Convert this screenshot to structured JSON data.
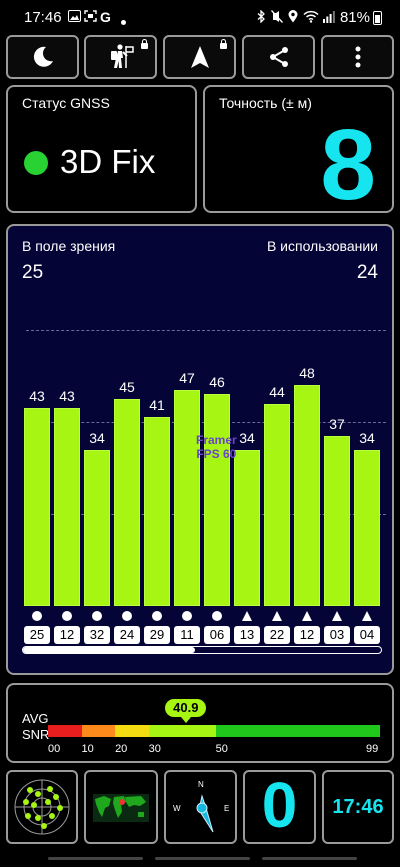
{
  "status_bar": {
    "time": "17:46",
    "left_icons": [
      "image-icon",
      "screenshot-icon",
      "google-icon",
      "dot-icon"
    ],
    "right_icons": [
      "bluetooth-icon",
      "mute-icon",
      "location-icon",
      "wifi-icon",
      "signal-icon"
    ],
    "battery": "81%"
  },
  "toolbar": {
    "buttons": [
      {
        "icon": "moon-icon"
      },
      {
        "icon": "hiker-icon",
        "locked": true
      },
      {
        "icon": "navigation-arrow-icon",
        "locked": true
      },
      {
        "icon": "share-icon"
      },
      {
        "icon": "more-vert-icon"
      }
    ]
  },
  "gnss": {
    "label": "Статус GNSS",
    "value": "3D Fix",
    "dot_color": "#27d232"
  },
  "accuracy": {
    "label": "Точность (± м)",
    "value": "8",
    "color": "#16e5f0"
  },
  "sky": {
    "in_view_label": "В поле зрения",
    "in_view": "25",
    "in_use_label": "В использовании",
    "in_use": "24",
    "watermark_line1": "Framer",
    "watermark_line2": "FPS 60",
    "scroll_fraction": 0.48
  },
  "chart_data": {
    "type": "bar",
    "categories": [
      "25",
      "12",
      "32",
      "24",
      "29",
      "11",
      "06",
      "13",
      "22",
      "12",
      "03",
      "04"
    ],
    "values": [
      43,
      43,
      34,
      45,
      41,
      47,
      46,
      34,
      44,
      48,
      37,
      34
    ],
    "markers": [
      "circle",
      "circle",
      "circle",
      "circle",
      "circle",
      "circle",
      "circle",
      "triangle",
      "triangle",
      "triangle",
      "triangle",
      "triangle"
    ],
    "bar_color": "#a6f512",
    "ylim": [
      0,
      60
    ],
    "grid": true
  },
  "snr": {
    "label1": "AVG",
    "label2": "SNR",
    "avg": "40.9",
    "avg_value": 40.9,
    "ticks": [
      "00",
      "10",
      "20",
      "30",
      "50",
      "99"
    ],
    "segments": [
      {
        "from": 0,
        "to": 10,
        "color": "#e81e1e"
      },
      {
        "from": 10,
        "to": 20,
        "color": "#ff8a1c"
      },
      {
        "from": 20,
        "to": 30,
        "color": "#f5dc12"
      },
      {
        "from": 30,
        "to": 50,
        "color": "#a6f512"
      },
      {
        "from": 50,
        "to": 99,
        "color": "#1fc81a"
      }
    ]
  },
  "bottom": {
    "radar_icon": "sky-radar-icon",
    "map_icon": "world-map-icon",
    "compass": {
      "n": "N",
      "w": "W",
      "e": "E"
    },
    "count": "0",
    "clock": "17:46"
  }
}
